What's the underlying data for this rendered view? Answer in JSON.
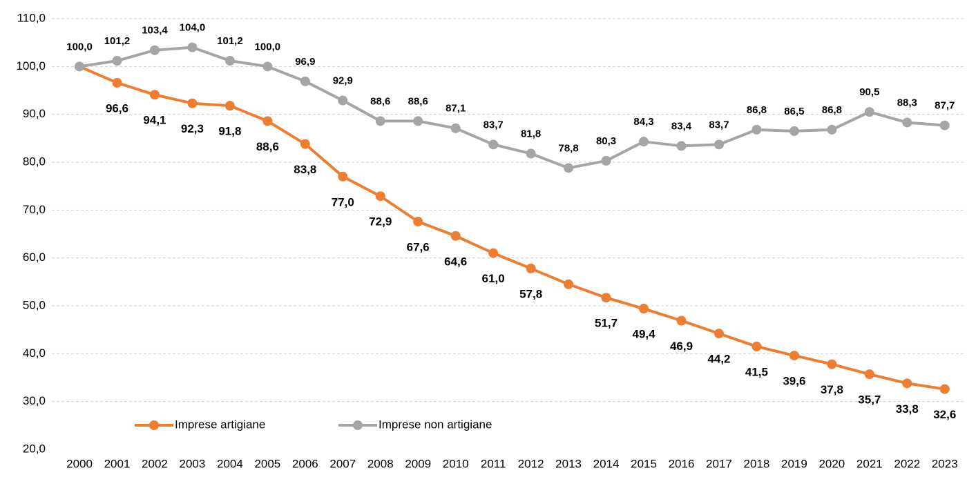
{
  "chart_data": {
    "type": "line",
    "categories": [
      "2000",
      "2001",
      "2002",
      "2003",
      "2004",
      "2005",
      "2006",
      "2007",
      "2008",
      "2009",
      "2010",
      "2011",
      "2012",
      "2013",
      "2014",
      "2015",
      "2016",
      "2017",
      "2018",
      "2019",
      "2020",
      "2021",
      "2022",
      "2023"
    ],
    "series": [
      {
        "name": "Imprese artigiane",
        "color": "#ed7d31",
        "values": [
          100.0,
          96.6,
          94.1,
          92.3,
          91.8,
          88.6,
          83.8,
          77.0,
          72.9,
          67.6,
          64.6,
          61.0,
          57.8,
          54.5,
          51.7,
          49.4,
          46.9,
          44.2,
          41.5,
          39.6,
          37.8,
          35.7,
          33.8,
          32.6
        ],
        "value_labels": [
          null,
          "96,6",
          "94,1",
          "92,3",
          "91,8",
          "88,6",
          "83,8",
          "77,0",
          "72,9",
          "67,6",
          "64,6",
          "61,0",
          "57,8",
          null,
          "51,7",
          "49,4",
          "46,9",
          "44,2",
          "41,5",
          "39,6",
          "37,8",
          "35,7",
          "33,8",
          "32,6"
        ]
      },
      {
        "name": "Imprese non artigiane",
        "color": "#a5a5a5",
        "values": [
          100.0,
          101.2,
          103.4,
          104.0,
          101.2,
          100.0,
          96.9,
          92.9,
          88.6,
          88.6,
          87.1,
          83.7,
          81.8,
          78.8,
          80.3,
          84.3,
          83.4,
          83.7,
          86.8,
          86.5,
          86.8,
          90.5,
          88.3,
          87.7
        ],
        "value_labels": [
          "100,0",
          "101,2",
          "103,4",
          "104,0",
          "101,2",
          "100,0",
          "96,9",
          "92,9",
          "88,6",
          "88,6",
          "87,1",
          "83,7",
          "81,8",
          "78,8",
          "80,3",
          "84,3",
          "83,4",
          "83,7",
          "86,8",
          "86,5",
          "86,8",
          "90,5",
          "88,3",
          "87,7"
        ]
      }
    ],
    "ylim": [
      20,
      110
    ],
    "yticks": [
      {
        "value": 20,
        "label": "20,0"
      },
      {
        "value": 30,
        "label": "30,0"
      },
      {
        "value": 40,
        "label": "40,0"
      },
      {
        "value": 50,
        "label": "50,0"
      },
      {
        "value": 60,
        "label": "60,0"
      },
      {
        "value": 70,
        "label": "70,0"
      },
      {
        "value": 80,
        "label": "80,0"
      },
      {
        "value": 90,
        "label": "90,0"
      },
      {
        "value": 100,
        "label": "100,0"
      },
      {
        "value": 110,
        "label": "110,0"
      }
    ],
    "grid": true
  }
}
